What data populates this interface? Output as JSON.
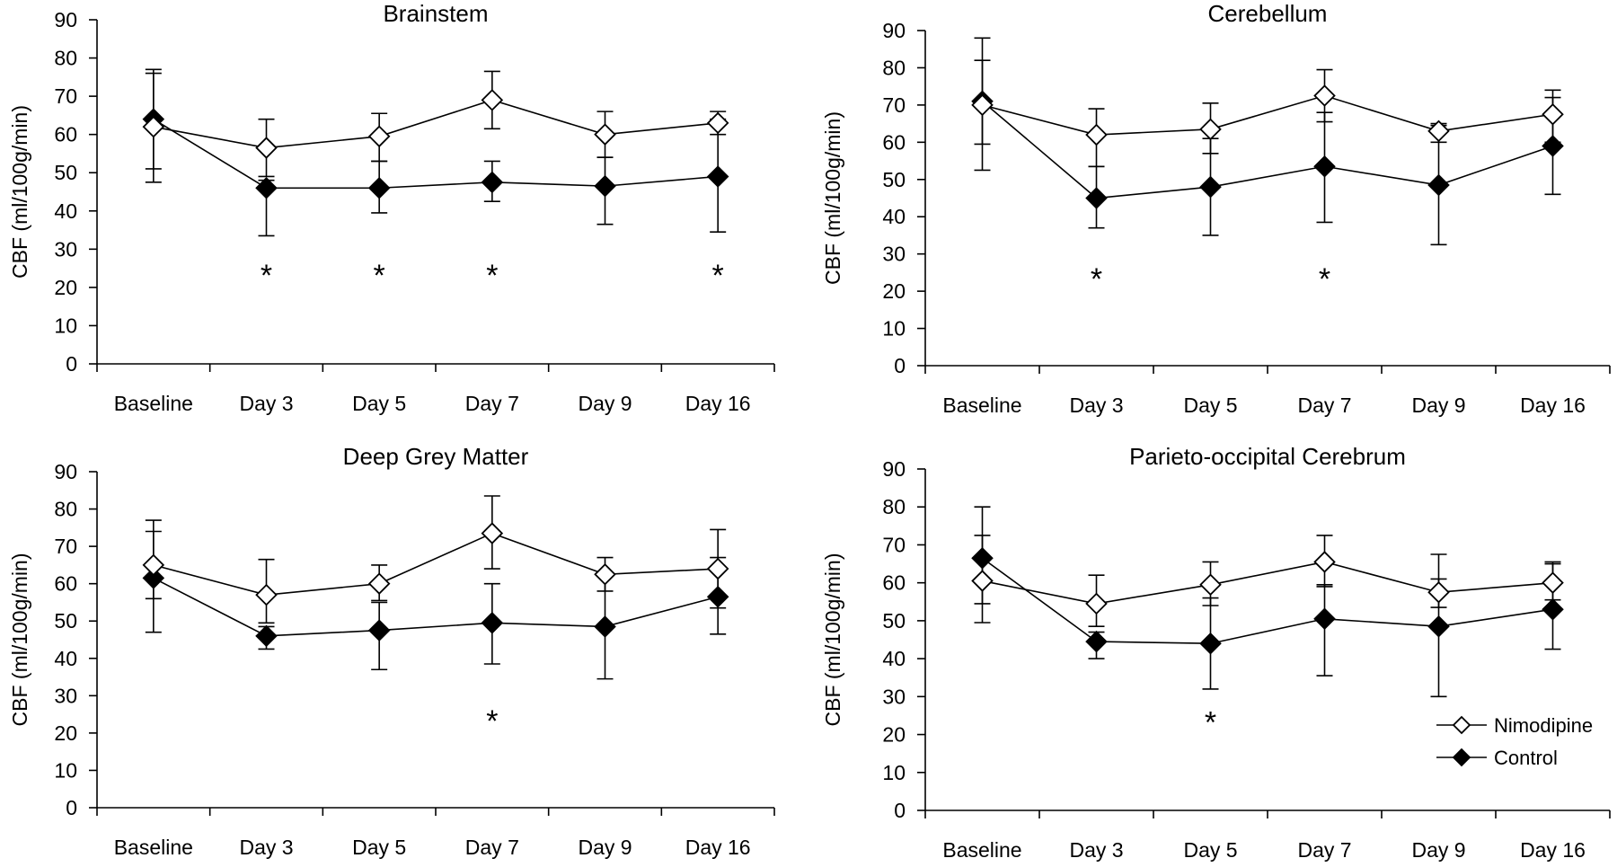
{
  "chart_data": [
    {
      "type": "line",
      "title": "Brainstem",
      "ylabel": "CBF (ml/100g/min)",
      "ylim": [
        0,
        90
      ],
      "yticks": [
        "0",
        "10",
        "20",
        "30",
        "40",
        "50",
        "60",
        "70",
        "80",
        "90"
      ],
      "categories": [
        "Baseline",
        "Day 3",
        "Day 5",
        "Day 7",
        "Day 9",
        "Day 16"
      ],
      "series": [
        {
          "name": "Nimodipine",
          "values": [
            62,
            56.5,
            59.5,
            69,
            60,
            63
          ],
          "err_high": [
            76,
            64,
            65.5,
            76.5,
            66,
            66
          ],
          "err_low": [
            51,
            49,
            53,
            61.5,
            54,
            60
          ]
        },
        {
          "name": "Control",
          "values": [
            64,
            46,
            46,
            47.5,
            46.5,
            49
          ],
          "err_high": [
            77,
            48,
            53,
            53,
            54,
            64
          ],
          "err_low": [
            47.5,
            33.5,
            39.5,
            42.5,
            36.5,
            34.5
          ]
        }
      ],
      "significance": [
        "",
        "*",
        "*",
        "*",
        "",
        "*"
      ],
      "show_legend": false
    },
    {
      "type": "line",
      "title": "Cerebellum",
      "ylabel": "CBF (ml/100g/min)",
      "ylim": [
        0,
        90
      ],
      "yticks": [
        "0",
        "10",
        "20",
        "30",
        "40",
        "50",
        "60",
        "70",
        "80",
        "90"
      ],
      "categories": [
        "Baseline",
        "Day 3",
        "Day 5",
        "Day 7",
        "Day 9",
        "Day 16"
      ],
      "series": [
        {
          "name": "Nimodipine",
          "values": [
            70,
            62,
            63.5,
            72.5,
            63,
            67.5
          ],
          "err_high": [
            82,
            69,
            70.5,
            79.5,
            65,
            74
          ],
          "err_low": [
            59.5,
            53.5,
            57,
            65.5,
            60,
            60
          ]
        },
        {
          "name": "Control",
          "values": [
            71,
            45,
            48,
            53.5,
            48.5,
            59
          ],
          "err_high": [
            88,
            53.5,
            61,
            68,
            64.5,
            72
          ],
          "err_low": [
            52.5,
            37,
            35,
            38.5,
            32.5,
            46
          ]
        }
      ],
      "significance": [
        "",
        "*",
        "",
        "*",
        "",
        ""
      ],
      "show_legend": false
    },
    {
      "type": "line",
      "title": "Deep Grey Matter",
      "ylabel": "CBF (ml/100g/min)",
      "ylim": [
        0,
        90
      ],
      "yticks": [
        "0",
        "10",
        "20",
        "30",
        "40",
        "50",
        "60",
        "70",
        "80",
        "90"
      ],
      "categories": [
        "Baseline",
        "Day 3",
        "Day 5",
        "Day 7",
        "Day 9",
        "Day 16"
      ],
      "series": [
        {
          "name": "Nimodipine",
          "values": [
            65,
            57,
            60,
            73.5,
            62.5,
            64
          ],
          "err_high": [
            74,
            66.5,
            65,
            83.5,
            67,
            74.5
          ],
          "err_low": [
            56,
            49.5,
            55.5,
            64,
            58,
            53.5
          ]
        },
        {
          "name": "Control",
          "values": [
            61.5,
            46,
            47.5,
            49.5,
            48.5,
            56.5
          ],
          "err_high": [
            77,
            48.5,
            55,
            60,
            62.5,
            67
          ],
          "err_low": [
            47,
            42.5,
            37,
            38.5,
            34.5,
            46.5
          ]
        }
      ],
      "significance": [
        "",
        "",
        "",
        "*",
        "",
        ""
      ],
      "show_legend": false
    },
    {
      "type": "line",
      "title": "Parieto-occipital Cerebrum",
      "ylabel": "CBF (ml/100g/min)",
      "ylim": [
        0,
        90
      ],
      "yticks": [
        "0",
        "10",
        "20",
        "30",
        "40",
        "50",
        "60",
        "70",
        "80",
        "90"
      ],
      "categories": [
        "Baseline",
        "Day 3",
        "Day 5",
        "Day 7",
        "Day 9",
        "Day 16"
      ],
      "series": [
        {
          "name": "Nimodipine",
          "values": [
            60.5,
            54.5,
            59.5,
            65.5,
            57.5,
            60
          ],
          "err_high": [
            72.5,
            62,
            65.5,
            72.5,
            67.5,
            65
          ],
          "err_low": [
            54.5,
            48.5,
            54,
            59,
            53.5,
            55.5
          ]
        },
        {
          "name": "Control",
          "values": [
            66.5,
            44.5,
            44,
            50.5,
            48.5,
            53
          ],
          "err_high": [
            80,
            47,
            56,
            59.5,
            61,
            65.5
          ],
          "err_low": [
            49.5,
            40,
            32,
            35.5,
            30,
            42.5
          ]
        }
      ],
      "significance": [
        "",
        "",
        "*",
        "",
        "",
        ""
      ],
      "show_legend": true
    }
  ],
  "legend": {
    "items": [
      {
        "label": "Nimodipine",
        "marker": "open-diamond"
      },
      {
        "label": "Control",
        "marker": "filled-diamond"
      }
    ]
  },
  "colors": {
    "line": "#000000",
    "open_marker_fill": "#ffffff",
    "filled_marker_fill": "#000000"
  }
}
